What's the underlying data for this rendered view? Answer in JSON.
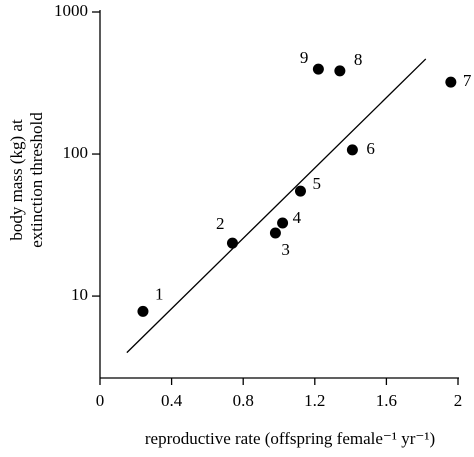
{
  "chart_data": {
    "type": "scatter",
    "xlabel": "reproductive rate (offspring female⁻¹ yr⁻¹)",
    "ylabel": [
      "body mass (kg) at",
      "extinction threshold"
    ],
    "x": [
      0.24,
      0.74,
      0.98,
      1.02,
      1.12,
      1.41,
      1.96,
      1.34,
      1.22
    ],
    "values": [
      7.8,
      23.6,
      27.8,
      32.7,
      54.8,
      107,
      321,
      385,
      396
    ],
    "point_labels": [
      "1",
      "2",
      "3",
      "4",
      "5",
      "6",
      "7",
      "8",
      "9"
    ],
    "color": "#000000",
    "trend_line": {
      "x": [
        0.15,
        1.82
      ],
      "y": [
        4.0,
        467
      ]
    },
    "xlim": [
      0,
      2
    ],
    "xticks": [
      0,
      0.4,
      0.8,
      1.2,
      1.6,
      2
    ],
    "ylim": [
      2.65,
      1000
    ],
    "yticks": [
      10,
      100,
      1000
    ],
    "log_y": true
  }
}
